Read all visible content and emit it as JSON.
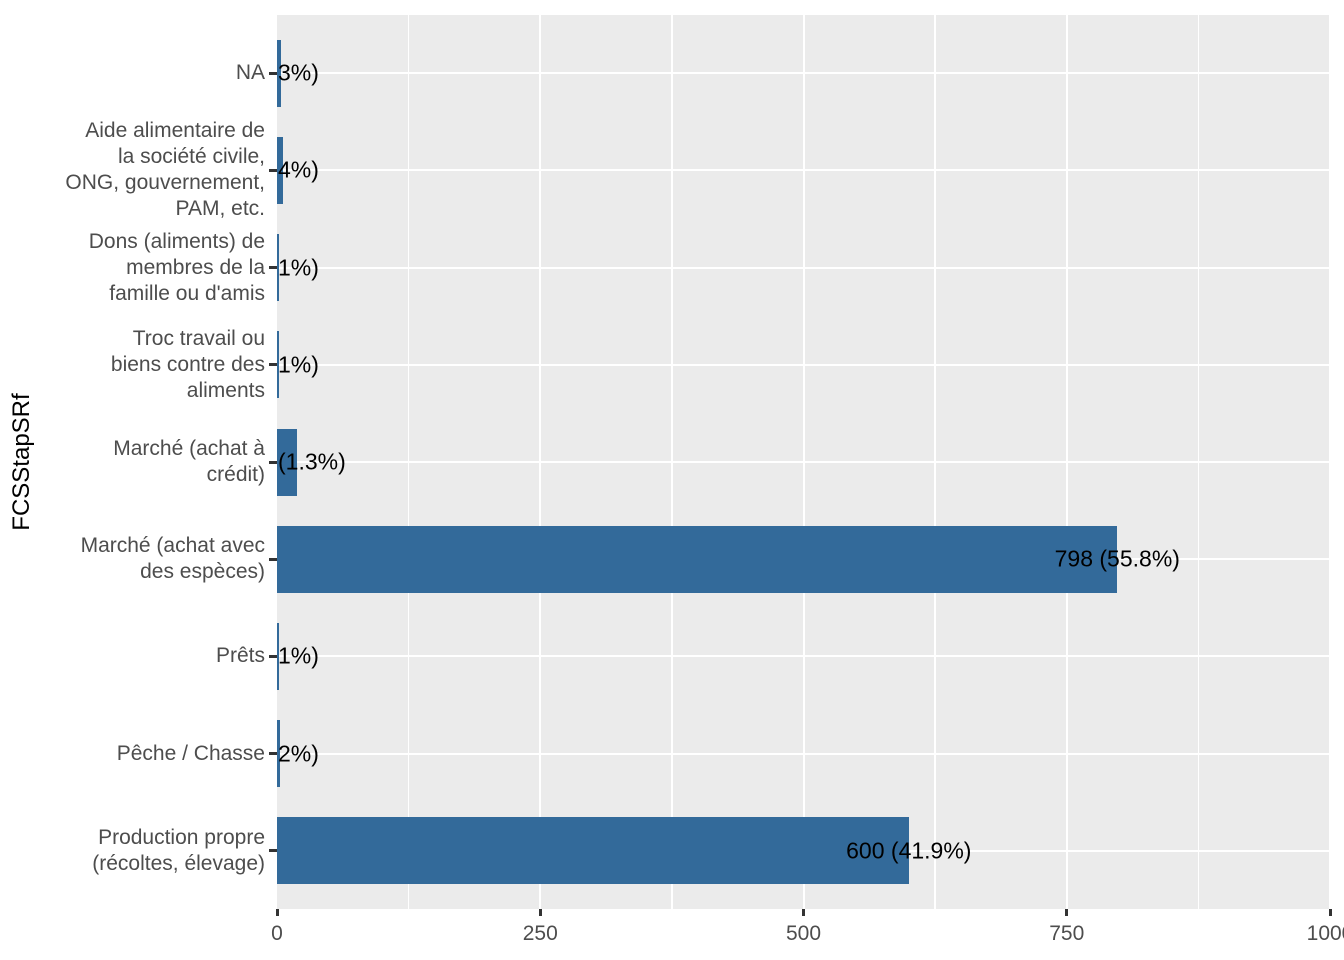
{
  "chart_data": {
    "type": "bar",
    "orientation": "horizontal",
    "title": "",
    "xlabel": "",
    "ylabel": "FCSStapSRf",
    "xlim": [
      0,
      1000
    ],
    "x_major_ticks": [
      0,
      250,
      500,
      750,
      1000
    ],
    "x_tick_labels": [
      "0",
      "250",
      "500",
      "750",
      "1000"
    ],
    "x_minor_gridlines": [
      125,
      375,
      625,
      875
    ],
    "grid": "white-on-gray-panel",
    "legend": "none",
    "colors": {
      "bar": "#336A9A",
      "panel_background": "#EBEBEB",
      "gridline": "#FFFFFF",
      "axis_text": "#4D4D4D",
      "bar_label_text": "#000000",
      "tick_mark": "#333333"
    },
    "rows": [
      {
        "category": "NA",
        "value": 4,
        "label_visible": "3%)",
        "label_mode": "left"
      },
      {
        "category": "Aide alimentaire de\nla société civile,\nONG, gouvernement,\nPAM, etc.",
        "value": 6,
        "label_visible": "4%)",
        "label_mode": "left"
      },
      {
        "category": "Dons (aliments) de\nmembres de la\nfamille ou d'amis",
        "value": 2,
        "label_visible": "1%)",
        "label_mode": "left"
      },
      {
        "category": "Troc travail ou\nbiens contre des\naliments",
        "value": 2,
        "label_visible": "1%)",
        "label_mode": "left"
      },
      {
        "category": "Marché (achat à\ncrédit)",
        "value": 19,
        "label_visible": "(1.3%)",
        "label_mode": "left"
      },
      {
        "category": "Marché (achat avec\ndes espèces)",
        "value": 798,
        "label_visible": "798 (55.8%)",
        "label_mode": "end-center"
      },
      {
        "category": "Prêts",
        "value": 2,
        "label_visible": "1%)",
        "label_mode": "left"
      },
      {
        "category": "Pêche / Chasse",
        "value": 3,
        "label_visible": "2%)",
        "label_mode": "left"
      },
      {
        "category": "Production propre\n(récoltes, élevage)",
        "value": 600,
        "label_visible": "600 (41.9%)",
        "label_mode": "end-center"
      }
    ]
  }
}
